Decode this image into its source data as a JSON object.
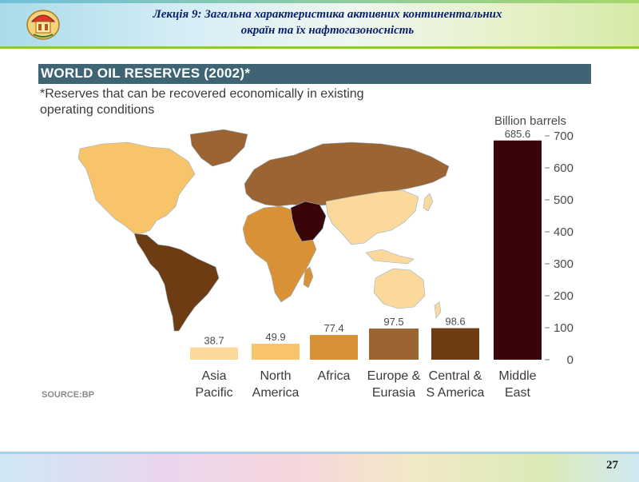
{
  "slide": {
    "title_line1": "Лекція 9: Загальна характеристика активних континентальних",
    "title_line2": "окраїн та їх нафтогазоносність",
    "page_number": "27"
  },
  "figure": {
    "source": "SOURCE:BP"
  },
  "chart_data": {
    "type": "bar",
    "title": "WORLD OIL RESERVES (2002)*",
    "subtitle": "*Reserves that can be recovered economically in existing operating conditions",
    "ylabel": "Billion barrels",
    "ylim": [
      0,
      700
    ],
    "y_ticks": [
      0,
      100,
      200,
      300,
      400,
      500,
      600,
      700
    ],
    "categories": [
      [
        "Asia",
        "Pacific"
      ],
      [
        "North",
        "America"
      ],
      [
        "Africa"
      ],
      [
        "Europe &",
        "Eurasia"
      ],
      [
        "Central &",
        "S America"
      ],
      [
        "Middle",
        "East"
      ]
    ],
    "values": [
      38.7,
      49.9,
      77.4,
      97.5,
      98.6,
      685.6
    ],
    "value_labels": [
      "38.7",
      "49.9",
      "77.4",
      "97.5",
      "98.6",
      "685.6"
    ],
    "colors": [
      "#fcd89a",
      "#f8c46a",
      "#d99135",
      "#9c6432",
      "#6d3c12",
      "#3a0509"
    ],
    "grid": false
  },
  "colors": {
    "title_bar": "#3f6474",
    "slide_title": "#0a1e6e",
    "ocean": "#ffffff",
    "map_asia_pacific": "#fcd89a",
    "map_north_america": "#f8c46a",
    "map_africa": "#d99135",
    "map_europe_eurasia": "#9c6432",
    "map_central_s_america": "#6d3c12",
    "map_middle_east": "#3a0509"
  }
}
